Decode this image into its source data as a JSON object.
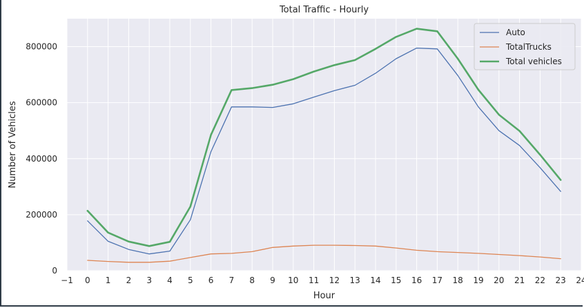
{
  "chart_data": {
    "type": "line",
    "title": "Total Traffic - Hourly",
    "xlabel": "Hour",
    "ylabel": "Number of Vehicles",
    "xlim": [
      -1,
      24
    ],
    "ylim": [
      0,
      900000
    ],
    "xticks": [
      "−1",
      "0",
      "1",
      "2",
      "3",
      "4",
      "5",
      "6",
      "7",
      "8",
      "9",
      "10",
      "11",
      "12",
      "13",
      "14",
      "15",
      "16",
      "17",
      "18",
      "19",
      "20",
      "21",
      "22",
      "23",
      "24"
    ],
    "yticks": [
      "0",
      "200000",
      "400000",
      "600000",
      "800000"
    ],
    "grid": true,
    "legend_position": "top-right",
    "x": [
      0,
      1,
      2,
      3,
      4,
      5,
      6,
      7,
      8,
      9,
      10,
      11,
      12,
      13,
      14,
      15,
      16,
      17,
      18,
      19,
      20,
      21,
      22,
      23
    ],
    "series": [
      {
        "name": "Auto",
        "color": "#4c72b0",
        "values": [
          178000,
          105000,
          76000,
          60000,
          70000,
          182000,
          425000,
          585000,
          585000,
          583000,
          596000,
          620000,
          643000,
          662000,
          705000,
          757000,
          795000,
          792000,
          697000,
          585000,
          500000,
          447000,
          368000,
          283000
        ]
      },
      {
        "name": "TotalTrucks",
        "color": "#dd8452",
        "values": [
          37000,
          33000,
          30000,
          30000,
          34000,
          47000,
          60000,
          62000,
          68000,
          83000,
          88000,
          91000,
          91000,
          90000,
          88000,
          81000,
          73000,
          68000,
          65000,
          62000,
          58000,
          54000,
          49000,
          43000
        ]
      },
      {
        "name": "Total vehicles",
        "color": "#55a868",
        "values": [
          214000,
          136000,
          104000,
          88000,
          103000,
          229000,
          485000,
          645000,
          652000,
          664000,
          684000,
          711000,
          734000,
          752000,
          792000,
          835000,
          864000,
          855000,
          757000,
          646000,
          557000,
          499000,
          414000,
          324000
        ]
      }
    ]
  }
}
